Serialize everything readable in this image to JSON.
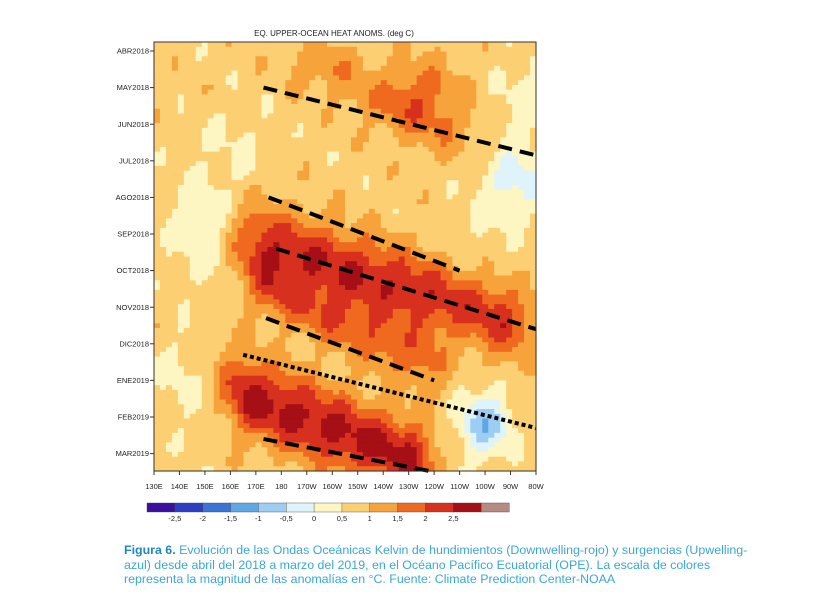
{
  "chart_data": {
    "type": "heatmap",
    "title": "EQ. UPPER-OCEAN HEAT ANOMS. (deg C)",
    "xlabel": "",
    "ylabel": "",
    "x_ticks": [
      "130E",
      "140E",
      "150E",
      "160E",
      "170E",
      "180",
      "170W",
      "160W",
      "150W",
      "140W",
      "130W",
      "120W",
      "110W",
      "100W",
      "90W",
      "80W"
    ],
    "x_values_lon": [
      130,
      140,
      150,
      160,
      170,
      180,
      190,
      200,
      210,
      220,
      230,
      240,
      250,
      260,
      270,
      280
    ],
    "y_ticks": [
      "ABR2018",
      "MAY2018",
      "JUN2018",
      "JUL2018",
      "AGO2018",
      "SEP2018",
      "OCT2018",
      "NOV2018",
      "DIC2018",
      "ENE2019",
      "FEB2019",
      "MAR2019"
    ],
    "y_range_months": [
      0,
      11.35
    ],
    "colorbar": {
      "labels": [
        "-2,5",
        "-2",
        "-1,5",
        "-1",
        "-0,5",
        "0",
        "0,5",
        "1",
        "1,5",
        "2",
        "2,5"
      ],
      "colors": [
        "#3b0fa0",
        "#2c3fc4",
        "#3a74d6",
        "#5fa6e6",
        "#9ccdf2",
        "#dff3fb",
        "#fdf5c2",
        "#fbcf72",
        "#f7a33b",
        "#ef6a1e",
        "#d7301f",
        "#a50f15",
        "#b58a80"
      ]
    },
    "field_model": {
      "background": 0.75,
      "blobs": [
        {
          "lon": 236,
          "t": 1.2,
          "slon": 11,
          "st": 0.7,
          "a": 0.9
        },
        {
          "lon": 196,
          "t": 0.4,
          "slon": 9,
          "st": 0.5,
          "a": 0.6
        },
        {
          "lon": 162,
          "t": 2.6,
          "slon": 8,
          "st": 0.8,
          "a": -0.3
        },
        {
          "lon": 270,
          "t": 3.4,
          "slon": 9,
          "st": 0.8,
          "a": -1.1
        },
        {
          "lon": 150,
          "t": 4.8,
          "slon": 10,
          "st": 1.0,
          "a": -0.6
        },
        {
          "lon": 140,
          "t": 9.0,
          "slon": 6,
          "st": 0.9,
          "a": -0.4
        },
        {
          "lon": 260,
          "t": 10.2,
          "slon": 7,
          "st": 0.6,
          "a": -1.6
        },
        {
          "lon": 275,
          "t": 1.0,
          "slon": 8,
          "st": 0.8,
          "a": -0.4
        },
        {
          "lon": 256,
          "t": 6.3,
          "slon": 12,
          "st": 1.2,
          "a": -0.3
        }
      ],
      "waves": [
        {
          "lon0": 168,
          "t0": 5.2,
          "lon1": 272,
          "t1": 7.4,
          "w": 0.75,
          "a": 1.7
        },
        {
          "lon0": 170,
          "t0": 6.4,
          "lon1": 240,
          "t1": 8.6,
          "w": 0.55,
          "a": 1.0
        },
        {
          "lon0": 162,
          "t0": 9.3,
          "lon1": 236,
          "t1": 11.3,
          "w": 0.75,
          "a": 1.9
        },
        {
          "lon0": 205,
          "t0": 1.0,
          "lon1": 268,
          "t1": 2.9,
          "w": 0.55,
          "a": 0.5
        }
      ]
    },
    "overlay_lines": [
      {
        "style": "dashed",
        "from": {
          "lon": 173,
          "t": 1.0
        },
        "to": {
          "lon": 280,
          "t": 2.85
        }
      },
      {
        "style": "dashed",
        "from": {
          "lon": 175,
          "t": 4.0
        },
        "to": {
          "lon": 250,
          "t": 6.0
        }
      },
      {
        "style": "dashed",
        "from": {
          "lon": 178,
          "t": 5.4
        },
        "to": {
          "lon": 280,
          "t": 7.6
        }
      },
      {
        "style": "dashed",
        "from": {
          "lon": 174,
          "t": 7.3
        },
        "to": {
          "lon": 240,
          "t": 9.0
        }
      },
      {
        "style": "dashed",
        "from": {
          "lon": 173,
          "t": 10.6
        },
        "to": {
          "lon": 240,
          "t": 11.5
        }
      },
      {
        "style": "dotted",
        "from": {
          "lon": 165,
          "t": 8.3
        },
        "to": {
          "lon": 280,
          "t": 10.3
        }
      }
    ]
  },
  "caption": {
    "label": "Figura 6.",
    "text": " Evolución de las Ondas Oceánicas Kelvin de hundimientos (Downwelling-rojo) y surgencias (Upwelling-azul) desde abril del 2018 a marzo del 2019, en el Océano Pacífico Ecuatorial (OPE). La escala de colores representa la magnitud de las anomalías en °C. Fuente: Climate Prediction Center-NOAA"
  }
}
